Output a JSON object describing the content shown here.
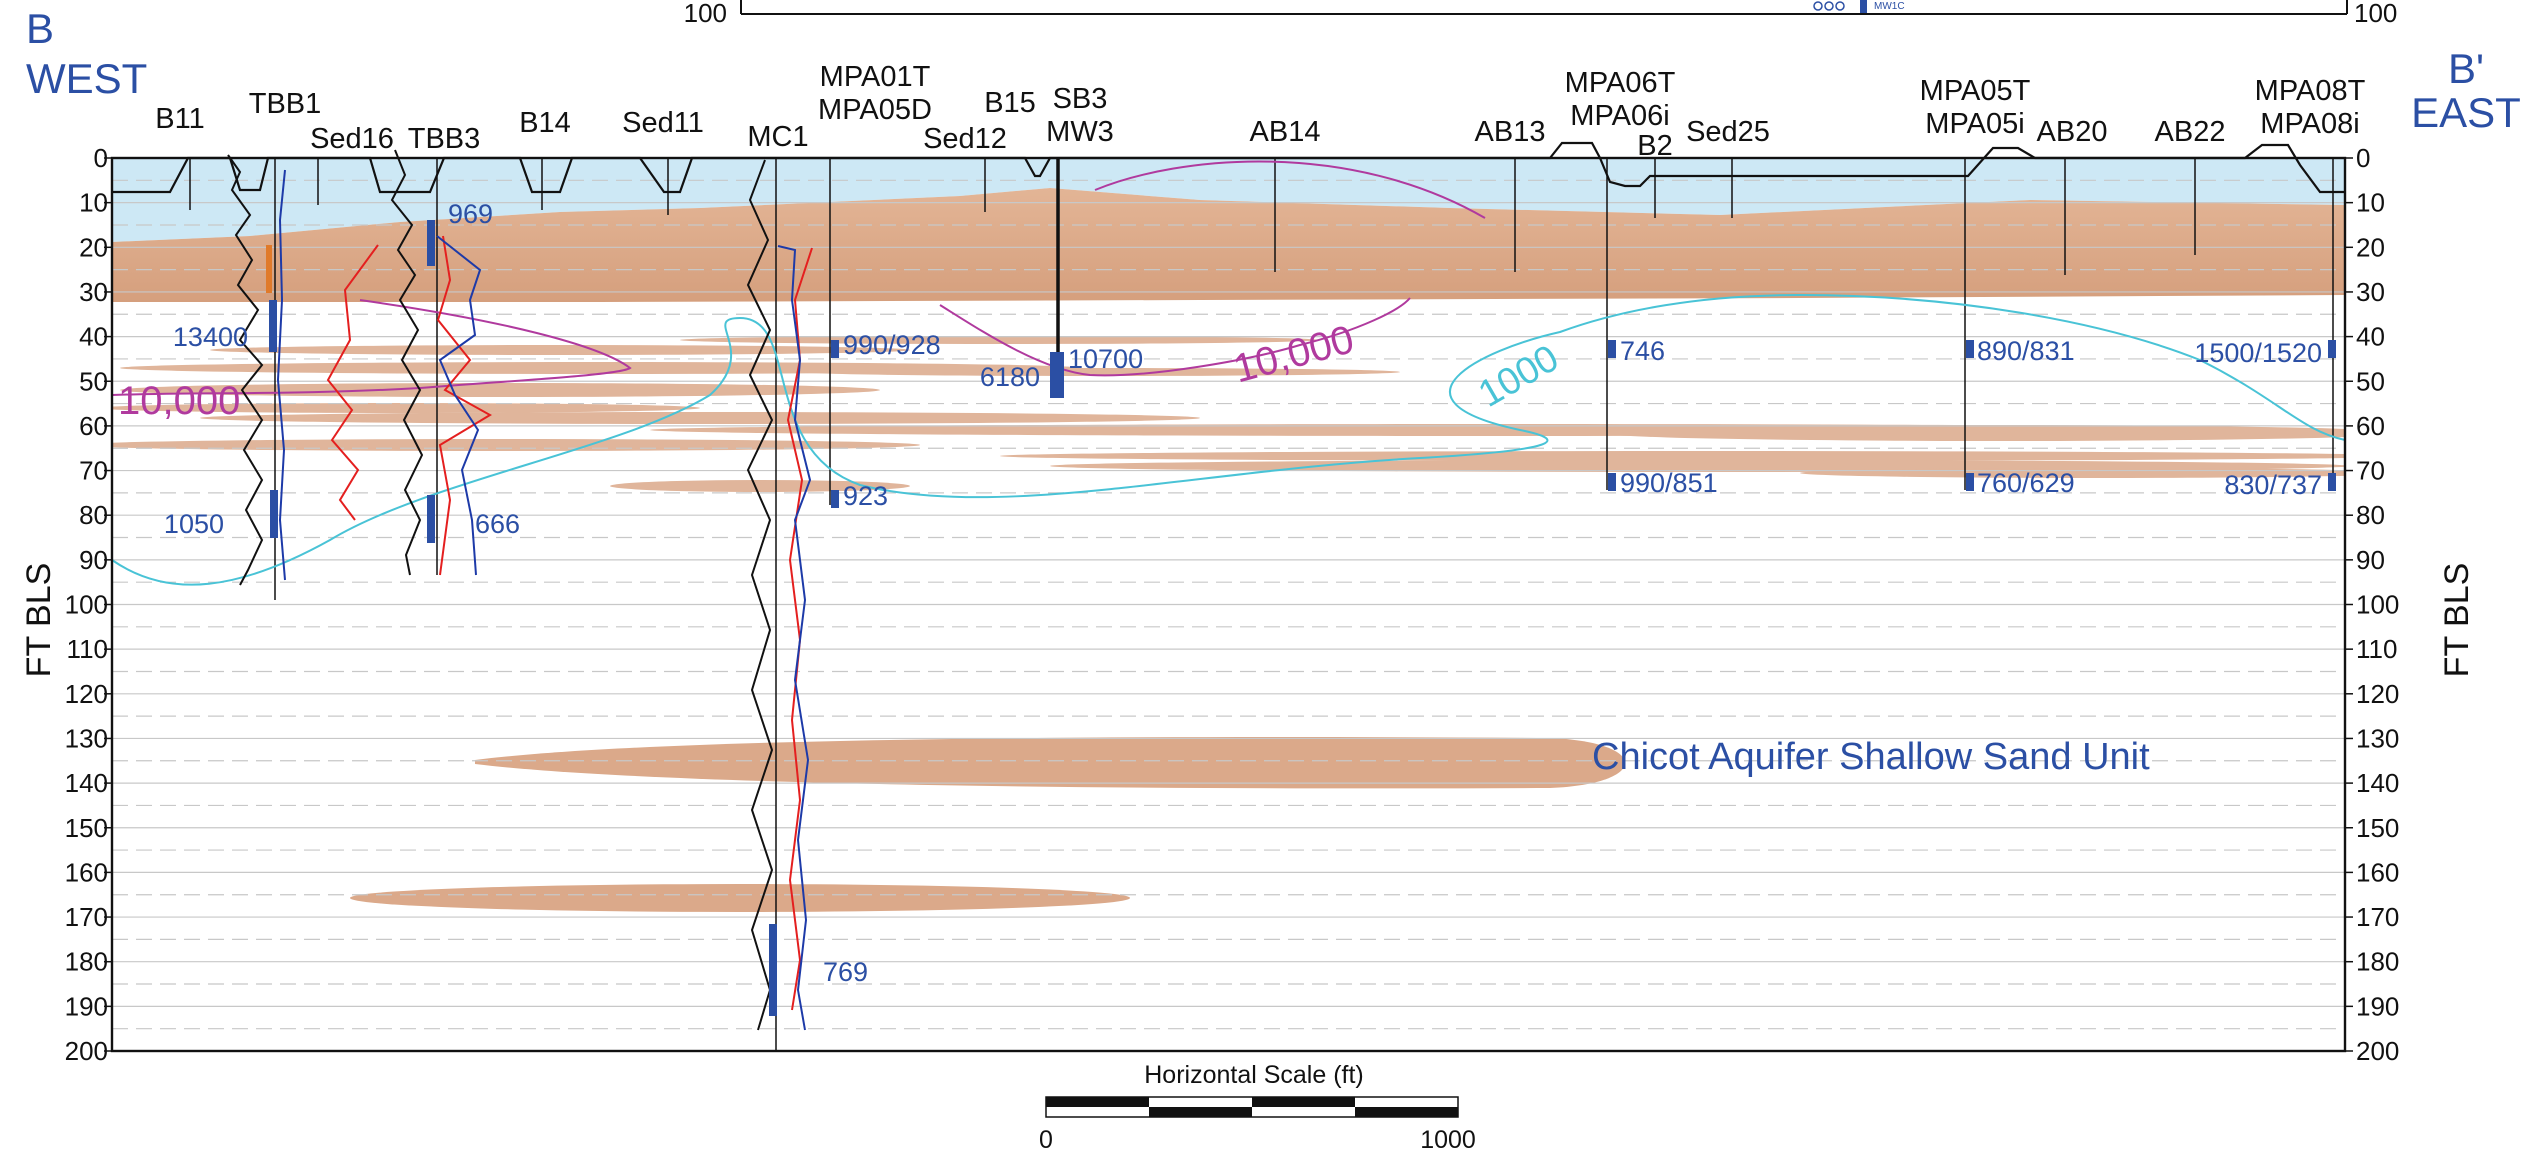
{
  "sections": {
    "left": {
      "letter": "B",
      "direction": "WEST"
    },
    "right": {
      "letter": "B'",
      "direction": "EAST"
    }
  },
  "top_ticks": {
    "left": "100",
    "right": "100",
    "small_label": "MW1C"
  },
  "wells": [
    {
      "id": "b11",
      "lines": [
        "B11"
      ]
    },
    {
      "id": "tbb1",
      "lines": [
        "TBB1"
      ]
    },
    {
      "id": "sed16",
      "lines": [
        "Sed16"
      ]
    },
    {
      "id": "tbb3",
      "lines": [
        "TBB3"
      ]
    },
    {
      "id": "b14",
      "lines": [
        "B14"
      ]
    },
    {
      "id": "sed11",
      "lines": [
        "Sed11"
      ]
    },
    {
      "id": "mc1",
      "lines": [
        "MC1"
      ]
    },
    {
      "id": "mpa01",
      "lines": [
        "MPA01T",
        "MPA05D"
      ]
    },
    {
      "id": "sed12",
      "lines": [
        "Sed12"
      ]
    },
    {
      "id": "b15",
      "lines": [
        "B15"
      ]
    },
    {
      "id": "sb3",
      "lines": [
        "SB3",
        "MW3"
      ]
    },
    {
      "id": "ab14",
      "lines": [
        "AB14"
      ]
    },
    {
      "id": "ab13",
      "lines": [
        "AB13"
      ]
    },
    {
      "id": "mpa06",
      "lines": [
        "MPA06T",
        "MPA06i"
      ]
    },
    {
      "id": "b2",
      "lines": [
        "B2"
      ]
    },
    {
      "id": "sed25",
      "lines": [
        "Sed25"
      ]
    },
    {
      "id": "mpa05",
      "lines": [
        "MPA05T",
        "MPA05i"
      ]
    },
    {
      "id": "ab20",
      "lines": [
        "AB20"
      ]
    },
    {
      "id": "ab22",
      "lines": [
        "AB22"
      ]
    },
    {
      "id": "mpa08",
      "lines": [
        "MPA08T",
        "MPA08i"
      ]
    }
  ],
  "depth_axis": {
    "title": "FT BLS",
    "ticks": [
      "0",
      "10",
      "20",
      "30",
      "40",
      "50",
      "60",
      "70",
      "80",
      "90",
      "100",
      "110",
      "120",
      "130",
      "140",
      "150",
      "160",
      "170",
      "180",
      "190",
      "200"
    ]
  },
  "concentrations": [
    {
      "id": "tbb1-upper",
      "text": "13400"
    },
    {
      "id": "tbb1-lower",
      "text": "1050"
    },
    {
      "id": "tbb3-upper",
      "text": "969"
    },
    {
      "id": "tbb3-lower",
      "text": "666"
    },
    {
      "id": "mpa01-upper",
      "text": "990/928"
    },
    {
      "id": "mpa01-lower",
      "text": "923"
    },
    {
      "id": "sb3-left",
      "text": "6180"
    },
    {
      "id": "sb3-right",
      "text": "10700"
    },
    {
      "id": "mpa06-upper",
      "text": "746"
    },
    {
      "id": "mpa06-lower",
      "text": "990/851"
    },
    {
      "id": "mpa05-upper",
      "text": "890/831"
    },
    {
      "id": "mpa05-lower",
      "text": "760/629"
    },
    {
      "id": "mpa08-upper",
      "text": "1500/1520"
    },
    {
      "id": "mpa08-lower",
      "text": "830/737"
    },
    {
      "id": "mc1-deep",
      "text": "769"
    }
  ],
  "contours": [
    {
      "id": "contour-10000-west",
      "text": "10,000",
      "color": "#b03a9e"
    },
    {
      "id": "contour-10000-mid",
      "text": "10,000",
      "color": "#b03a9e"
    },
    {
      "id": "contour-1000",
      "text": "1000",
      "color": "#49c3d6"
    }
  ],
  "unit_label": "Chicot Aquifer Shallow Sand Unit",
  "scale_bar": {
    "title": "Horizontal Scale (ft)",
    "min_label": "0",
    "max_label": "1000"
  },
  "colors": {
    "water": "#cde8f5",
    "sand": "#dba98a",
    "label_blue": "#2b4fa4",
    "contour_magenta": "#b03a9e",
    "contour_cyan": "#49c3d6",
    "log_red": "#e41f1f",
    "log_blue": "#1d3aa8"
  }
}
